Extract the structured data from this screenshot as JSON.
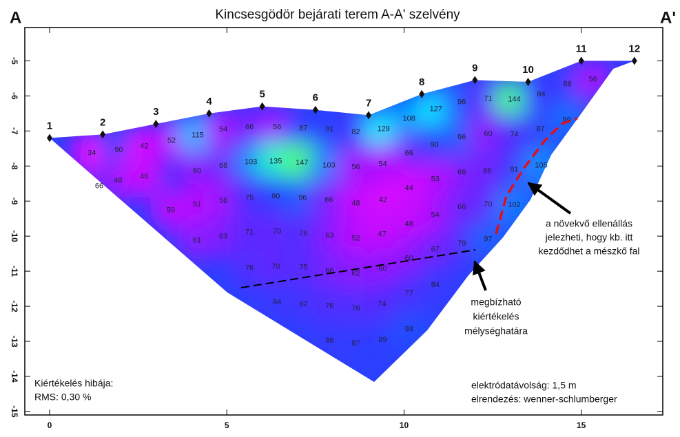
{
  "chart_data": {
    "type": "contour",
    "title": "Kincsesgödör bejárati terem A-A' szelvény",
    "corner_labels": [
      "A",
      "A'"
    ],
    "xlim": [
      -0.7,
      17.3
    ],
    "ylim": [
      -4.05,
      -15.1
    ],
    "xticks": [
      0,
      5,
      10,
      15
    ],
    "yticks": [
      -5,
      -6,
      -7,
      -8,
      -9,
      -10,
      -11,
      -12,
      -13,
      -14,
      -15
    ],
    "colormap": [
      "#f000ff",
      "#b010ff",
      "#5a28ff",
      "#2a40ff",
      "#00a0ff",
      "#10eaff",
      "#50ff70"
    ],
    "electrodes": [
      {
        "label": "1",
        "x": 0,
        "y": -7.2
      },
      {
        "label": "2",
        "x": 1.5,
        "y": -7.1
      },
      {
        "label": "3",
        "x": 3,
        "y": -6.8
      },
      {
        "label": "4",
        "x": 4.5,
        "y": -6.5
      },
      {
        "label": "5",
        "x": 6,
        "y": -6.3
      },
      {
        "label": "6",
        "x": 7.5,
        "y": -6.4
      },
      {
        "label": "7",
        "x": 9,
        "y": -6.55
      },
      {
        "label": "8",
        "x": 10.5,
        "y": -5.95
      },
      {
        "label": "9",
        "x": 12,
        "y": -5.55
      },
      {
        "label": "10",
        "x": 13.5,
        "y": -5.6
      },
      {
        "label": "11",
        "x": 15,
        "y": -5
      },
      {
        "label": "12",
        "x": 16.5,
        "y": -5
      }
    ],
    "points": [
      {
        "x": 1.19,
        "y": -7.63,
        "value": 34
      },
      {
        "x": 1.95,
        "y": -7.55,
        "value": 90
      },
      {
        "x": 2.67,
        "y": -7.44,
        "value": 42
      },
      {
        "x": 3.44,
        "y": -7.28,
        "value": 52
      },
      {
        "x": 4.18,
        "y": -7.12,
        "value": 115
      },
      {
        "x": 4.9,
        "y": -6.96,
        "value": 54
      },
      {
        "x": 5.64,
        "y": -6.89,
        "value": 66
      },
      {
        "x": 6.42,
        "y": -6.89,
        "value": 56
      },
      {
        "x": 7.16,
        "y": -6.93,
        "value": 87
      },
      {
        "x": 7.9,
        "y": -6.96,
        "value": 91
      },
      {
        "x": 8.64,
        "y": -7.04,
        "value": 82
      },
      {
        "x": 9.42,
        "y": -6.95,
        "value": 129
      },
      {
        "x": 10.14,
        "y": -6.65,
        "value": 108
      },
      {
        "x": 10.9,
        "y": -6.38,
        "value": 127
      },
      {
        "x": 11.63,
        "y": -6.18,
        "value": 96
      },
      {
        "x": 12.37,
        "y": -6.08,
        "value": 71
      },
      {
        "x": 13.11,
        "y": -6.1,
        "value": 144
      },
      {
        "x": 13.87,
        "y": -5.96,
        "value": 84
      },
      {
        "x": 14.61,
        "y": -5.67,
        "value": 88
      },
      {
        "x": 15.33,
        "y": -5.53,
        "value": 56
      },
      {
        "x": 10.14,
        "y": -7.63,
        "value": 66
      },
      {
        "x": 10.86,
        "y": -7.4,
        "value": 90
      },
      {
        "x": 11.63,
        "y": -7.18,
        "value": 96
      },
      {
        "x": 12.37,
        "y": -7.08,
        "value": 60
      },
      {
        "x": 13.11,
        "y": -7.1,
        "value": 74
      },
      {
        "x": 13.85,
        "y": -6.95,
        "value": 87
      },
      {
        "x": 14.59,
        "y": -6.69,
        "value": 99
      },
      {
        "x": 4.16,
        "y": -8.14,
        "value": 60
      },
      {
        "x": 4.9,
        "y": -8.0,
        "value": 66
      },
      {
        "x": 5.68,
        "y": -7.89,
        "value": 103
      },
      {
        "x": 6.38,
        "y": -7.87,
        "value": 135
      },
      {
        "x": 7.12,
        "y": -7.91,
        "value": 147
      },
      {
        "x": 7.88,
        "y": -7.99,
        "value": 103
      },
      {
        "x": 8.64,
        "y": -8.03,
        "value": 56
      },
      {
        "x": 9.4,
        "y": -7.95,
        "value": 54
      },
      {
        "x": 12.35,
        "y": -8.14,
        "value": 66
      },
      {
        "x": 13.11,
        "y": -8.1,
        "value": 81
      },
      {
        "x": 13.87,
        "y": -7.99,
        "value": 105
      },
      {
        "x": 11.63,
        "y": -8.18,
        "value": 66
      },
      {
        "x": 10.88,
        "y": -8.38,
        "value": 53
      },
      {
        "x": 10.14,
        "y": -8.63,
        "value": 44
      },
      {
        "x": 2.67,
        "y": -8.3,
        "value": 46
      },
      {
        "x": 1.93,
        "y": -8.42,
        "value": 48
      },
      {
        "x": 1.4,
        "y": -8.58,
        "value": 66
      },
      {
        "x": 3.42,
        "y": -9.26,
        "value": 50
      },
      {
        "x": 4.16,
        "y": -9.1,
        "value": 51
      },
      {
        "x": 4.9,
        "y": -9.0,
        "value": 56
      },
      {
        "x": 5.64,
        "y": -8.91,
        "value": 75
      },
      {
        "x": 6.38,
        "y": -8.87,
        "value": 90
      },
      {
        "x": 7.14,
        "y": -8.91,
        "value": 96
      },
      {
        "x": 7.88,
        "y": -8.97,
        "value": 66
      },
      {
        "x": 8.64,
        "y": -9.07,
        "value": 48
      },
      {
        "x": 9.4,
        "y": -8.97,
        "value": 42
      },
      {
        "x": 10.88,
        "y": -9.4,
        "value": 54
      },
      {
        "x": 10.14,
        "y": -9.66,
        "value": 48
      },
      {
        "x": 11.63,
        "y": -9.17,
        "value": 66
      },
      {
        "x": 12.37,
        "y": -9.1,
        "value": 70
      },
      {
        "x": 13.11,
        "y": -9.12,
        "value": 102
      },
      {
        "x": 4.16,
        "y": -10.13,
        "value": 61
      },
      {
        "x": 4.9,
        "y": -10.01,
        "value": 63
      },
      {
        "x": 5.64,
        "y": -9.89,
        "value": 71
      },
      {
        "x": 6.42,
        "y": -9.87,
        "value": 70
      },
      {
        "x": 7.16,
        "y": -9.93,
        "value": 76
      },
      {
        "x": 7.9,
        "y": -9.99,
        "value": 63
      },
      {
        "x": 8.64,
        "y": -10.07,
        "value": 52
      },
      {
        "x": 9.38,
        "y": -9.95,
        "value": 47
      },
      {
        "x": 11.63,
        "y": -10.21,
        "value": 79
      },
      {
        "x": 12.37,
        "y": -10.09,
        "value": 97
      },
      {
        "x": 5.64,
        "y": -10.91,
        "value": 76
      },
      {
        "x": 6.38,
        "y": -10.87,
        "value": 70
      },
      {
        "x": 7.16,
        "y": -10.89,
        "value": 75
      },
      {
        "x": 7.9,
        "y": -10.99,
        "value": 66
      },
      {
        "x": 8.64,
        "y": -11.07,
        "value": 62
      },
      {
        "x": 9.4,
        "y": -10.93,
        "value": 60
      },
      {
        "x": 10.14,
        "y": -10.64,
        "value": 60
      },
      {
        "x": 10.88,
        "y": -10.38,
        "value": 67
      },
      {
        "x": 6.42,
        "y": -11.88,
        "value": 84
      },
      {
        "x": 7.16,
        "y": -11.94,
        "value": 82
      },
      {
        "x": 7.9,
        "y": -11.99,
        "value": 76
      },
      {
        "x": 8.64,
        "y": -12.07,
        "value": 76
      },
      {
        "x": 9.38,
        "y": -11.94,
        "value": 74
      },
      {
        "x": 10.14,
        "y": -11.64,
        "value": 77
      },
      {
        "x": 10.88,
        "y": -11.39,
        "value": 84
      },
      {
        "x": 7.9,
        "y": -12.98,
        "value": 86
      },
      {
        "x": 8.64,
        "y": -13.06,
        "value": 87
      },
      {
        "x": 9.4,
        "y": -12.96,
        "value": 89
      },
      {
        "x": 10.14,
        "y": -12.66,
        "value": 93
      }
    ],
    "annotations": {
      "wall": [
        "a növekvő ellenállás",
        "jelezheti, hogy kb. itt",
        "kezdődhet a mészkő fal"
      ],
      "depth": [
        "megbízható",
        "kiértékelés",
        "mélységhatára"
      ],
      "error": [
        "Kiértékelés hibája:",
        "RMS: 0,30 %"
      ],
      "setup": [
        "elektródatávolság: 1,5 m",
        "elrendezés: wenner-schlumberger"
      ]
    }
  }
}
